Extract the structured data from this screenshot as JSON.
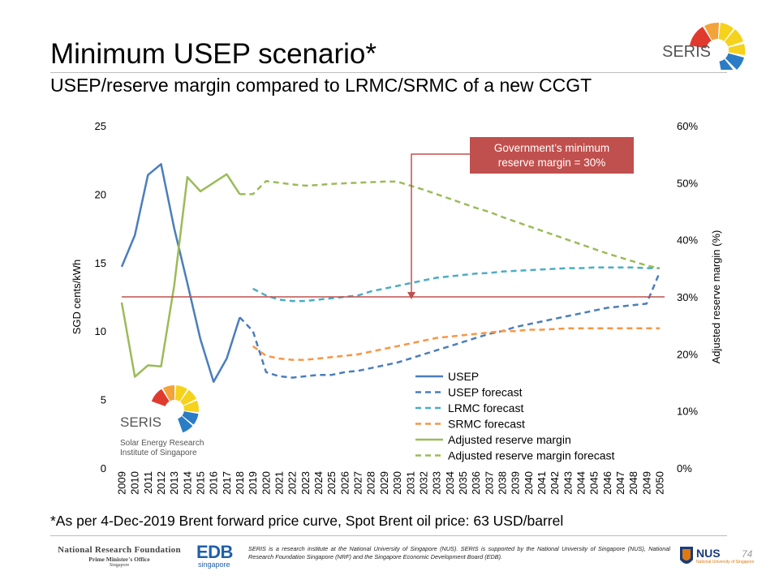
{
  "slide": {
    "title": "Minimum USEP scenario*",
    "subtitle": "USEP/reserve margin compared to LRMC/SRMC of a new CCGT",
    "footnote": "*As per 4-Dec-2019 Brent forward price curve, Spot Brent oil price: 63 USD/barrel",
    "page_number": "74"
  },
  "branding": {
    "seris_label": "SERIS",
    "seris_full_name_1": "Solar Energy Research",
    "seris_full_name_2": "Institute of Singapore",
    "nrf_line1": "National Research Foundation",
    "nrf_line2": "Prime Minister's Office",
    "nrf_line3": "Singapore",
    "edb_main": "EDB",
    "edb_sub": "singapore",
    "nus_label": "NUS",
    "nus_sub": "National University of Singapore",
    "disclaimer": "SERIS is a research institute at the National University of Singapore (NUS). SERIS is supported by the National University of Singapore (NUS), National Research Foundation Singapore (NRF) and the Singapore Economic Development Board (EDB)."
  },
  "chart_data": {
    "type": "line",
    "ylabel": "SGD cents/kWh",
    "y2label": "Adjusted reserve margin (%)",
    "ylim": [
      0,
      25
    ],
    "y2lim": [
      0,
      60
    ],
    "yticks": [
      "0",
      "5",
      "10",
      "15",
      "20",
      "25"
    ],
    "y2ticks": [
      "0%",
      "10%",
      "20%",
      "30%",
      "40%",
      "50%",
      "60%"
    ],
    "x": [
      2009,
      2010,
      2011,
      2012,
      2013,
      2014,
      2015,
      2016,
      2017,
      2018,
      2019,
      2020,
      2021,
      2022,
      2023,
      2024,
      2025,
      2026,
      2027,
      2028,
      2029,
      2030,
      2031,
      2032,
      2033,
      2034,
      2035,
      2036,
      2037,
      2038,
      2039,
      2040,
      2041,
      2042,
      2043,
      2044,
      2045,
      2046,
      2047,
      2048,
      2049,
      2050
    ],
    "annotation": {
      "text_line1": "Government’s minimum",
      "text_line2": "reserve margin = 30%",
      "value_percent": 30
    },
    "legend_position": "bottom-right",
    "series": [
      {
        "name": "USEP",
        "axis": "left",
        "style": "solid",
        "color": "#4a7ebb",
        "x": [
          2009,
          2010,
          2011,
          2012,
          2013,
          2014,
          2015,
          2016,
          2017,
          2018
        ],
        "values": [
          14.7,
          17.0,
          21.4,
          22.2,
          17.5,
          13.5,
          9.4,
          6.3,
          8.0,
          11.0
        ]
      },
      {
        "name": "USEP forecast",
        "axis": "left",
        "style": "dashed",
        "color": "#4a7ebb",
        "x": [
          2018,
          2019,
          2020,
          2021,
          2022,
          2023,
          2024,
          2025,
          2026,
          2027,
          2028,
          2029,
          2030,
          2031,
          2032,
          2033,
          2034,
          2035,
          2036,
          2037,
          2038,
          2039,
          2040,
          2041,
          2042,
          2043,
          2044,
          2045,
          2046,
          2047,
          2048,
          2049,
          2050
        ],
        "values": [
          11.0,
          10.0,
          7.0,
          6.7,
          6.6,
          6.7,
          6.8,
          6.8,
          7.0,
          7.1,
          7.3,
          7.5,
          7.7,
          8.0,
          8.3,
          8.6,
          8.9,
          9.2,
          9.5,
          9.8,
          10.0,
          10.3,
          10.5,
          10.7,
          10.9,
          11.1,
          11.3,
          11.5,
          11.7,
          11.8,
          11.9,
          12.0,
          14.3
        ]
      },
      {
        "name": "LRMC forecast",
        "axis": "left",
        "style": "dashed",
        "color": "#4bacc6",
        "x": [
          2019,
          2020,
          2021,
          2022,
          2023,
          2024,
          2025,
          2026,
          2027,
          2028,
          2029,
          2030,
          2031,
          2032,
          2033,
          2034,
          2035,
          2036,
          2037,
          2038,
          2039,
          2040,
          2041,
          2042,
          2043,
          2044,
          2045,
          2046,
          2047,
          2048,
          2049,
          2050
        ],
        "values": [
          13.1,
          12.6,
          12.3,
          12.2,
          12.2,
          12.3,
          12.4,
          12.5,
          12.6,
          12.9,
          13.1,
          13.3,
          13.5,
          13.7,
          13.9,
          14.0,
          14.1,
          14.2,
          14.25,
          14.35,
          14.4,
          14.45,
          14.5,
          14.55,
          14.6,
          14.6,
          14.65,
          14.65,
          14.65,
          14.65,
          14.6,
          14.6
        ]
      },
      {
        "name": "SRMC forecast",
        "axis": "left",
        "style": "dashed",
        "color": "#f79646",
        "x": [
          2019,
          2020,
          2021,
          2022,
          2023,
          2024,
          2025,
          2026,
          2027,
          2028,
          2029,
          2030,
          2031,
          2032,
          2033,
          2034,
          2035,
          2036,
          2037,
          2038,
          2039,
          2040,
          2041,
          2042,
          2043,
          2044,
          2045,
          2046,
          2047,
          2048,
          2049,
          2050
        ],
        "values": [
          8.9,
          8.2,
          8.0,
          7.9,
          7.9,
          8.0,
          8.1,
          8.2,
          8.3,
          8.5,
          8.7,
          8.9,
          9.1,
          9.3,
          9.5,
          9.6,
          9.7,
          9.8,
          9.9,
          10.0,
          10.0,
          10.1,
          10.1,
          10.15,
          10.2,
          10.2,
          10.2,
          10.2,
          10.2,
          10.2,
          10.2,
          10.2
        ]
      },
      {
        "name": "Adjusted reserve margin",
        "axis": "right",
        "style": "solid",
        "color": "#9bbb59",
        "x": [
          2009,
          2010,
          2011,
          2012,
          2013,
          2014,
          2015,
          2016,
          2017,
          2018
        ],
        "values": [
          29,
          16,
          18,
          17.8,
          32,
          51,
          48.5,
          50,
          51.5,
          48
        ]
      },
      {
        "name": "Adjusted reserve margin forecast",
        "axis": "right",
        "style": "dashed",
        "color": "#9bbb59",
        "x": [
          2018,
          2019,
          2020,
          2021,
          2022,
          2023,
          2024,
          2025,
          2026,
          2027,
          2028,
          2029,
          2030,
          2031,
          2032,
          2033,
          2034,
          2035,
          2036,
          2037,
          2038,
          2039,
          2040,
          2041,
          2042,
          2043,
          2044,
          2045,
          2046,
          2047,
          2048,
          2049,
          2050
        ],
        "values": [
          48,
          48,
          50.3,
          50,
          49.7,
          49.5,
          49.6,
          49.8,
          49.9,
          50,
          50.1,
          50.2,
          50.2,
          49.5,
          48.8,
          48,
          47.2,
          46.4,
          45.6,
          44.9,
          44,
          43.2,
          42.4,
          41.6,
          40.8,
          40,
          39.2,
          38.4,
          37.6,
          36.9,
          36.2,
          35.5,
          35
        ]
      }
    ]
  }
}
